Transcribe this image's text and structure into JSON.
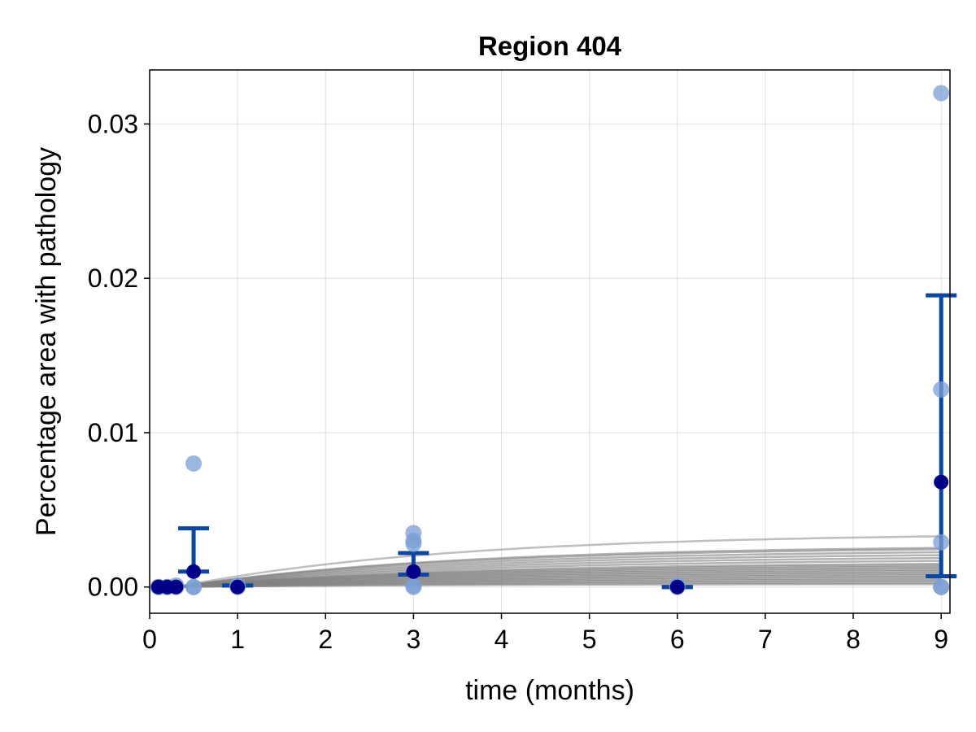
{
  "chart_data": {
    "type": "scatter",
    "title": "Region 404",
    "xlabel": "time (months)",
    "ylabel": "Percentage area with pathology",
    "xlim": [
      0,
      9.1
    ],
    "ylim": [
      -0.0017,
      0.0335
    ],
    "x_ticks": [
      0,
      1,
      2,
      3,
      4,
      5,
      6,
      7,
      8,
      9
    ],
    "x_tick_labels": [
      "0",
      "1",
      "2",
      "3",
      "4",
      "5",
      "6",
      "7",
      "8",
      "9"
    ],
    "y_ticks": [
      0.0,
      0.01,
      0.02,
      0.03
    ],
    "y_tick_labels": [
      "0.00",
      "0.01",
      "0.02",
      "0.03"
    ],
    "grid": true,
    "colors": {
      "observations": "#7a9fd6",
      "mean": "#00008b",
      "error_bar": "#0a47a5",
      "model_curves": "#808080"
    },
    "observations": [
      {
        "x": 0.1,
        "y": 0.0
      },
      {
        "x": 0.1,
        "y": 0.0
      },
      {
        "x": 0.2,
        "y": 0.0
      },
      {
        "x": 0.2,
        "y": 0.0
      },
      {
        "x": 0.3,
        "y": 0.0001
      },
      {
        "x": 0.3,
        "y": 0.0
      },
      {
        "x": 0.5,
        "y": 0.008
      },
      {
        "x": 0.5,
        "y": 0.0
      },
      {
        "x": 0.5,
        "y": 0.0
      },
      {
        "x": 1.0,
        "y": 0.0001
      },
      {
        "x": 1.0,
        "y": 0.0
      },
      {
        "x": 3.0,
        "y": 0.0035
      },
      {
        "x": 3.0,
        "y": 0.003
      },
      {
        "x": 3.0,
        "y": 0.0028
      },
      {
        "x": 3.0,
        "y": 0.0001
      },
      {
        "x": 3.0,
        "y": 0.0
      },
      {
        "x": 6.0,
        "y": 0.0
      },
      {
        "x": 6.0,
        "y": 0.0001
      },
      {
        "x": 9.0,
        "y": 0.032
      },
      {
        "x": 9.0,
        "y": 0.0128
      },
      {
        "x": 9.0,
        "y": 0.0029
      },
      {
        "x": 9.0,
        "y": 0.0
      },
      {
        "x": 9.0,
        "y": 0.0
      }
    ],
    "means": [
      {
        "x": 0.1,
        "y": 0.0
      },
      {
        "x": 0.2,
        "y": 0.0
      },
      {
        "x": 0.3,
        "y": 0.0
      },
      {
        "x": 0.5,
        "y": 0.001
      },
      {
        "x": 1.0,
        "y": 0.0
      },
      {
        "x": 3.0,
        "y": 0.001
      },
      {
        "x": 6.0,
        "y": 0.0
      },
      {
        "x": 9.0,
        "y": 0.0068
      }
    ],
    "error_bars": [
      {
        "x": 0.5,
        "low": 0.001,
        "high": 0.0038
      },
      {
        "x": 1.0,
        "low": 0.0001,
        "high": 0.0001
      },
      {
        "x": 3.0,
        "low": 0.0008,
        "high": 0.0022
      },
      {
        "x": 6.0,
        "low": 0.0,
        "high": 0.0
      },
      {
        "x": 9.0,
        "low": 0.0007,
        "high": 0.0189
      }
    ],
    "model_curves": {
      "x_start": 0.3,
      "x_end": 9.0,
      "rate": 0.32,
      "plateaus": [
        0.0035,
        0.0027,
        0.0026,
        0.0024,
        0.0022,
        0.002,
        0.0018,
        0.0016,
        0.0015,
        0.0014,
        0.0013,
        0.0012,
        0.0011,
        0.001,
        0.0009,
        0.0008,
        0.0007,
        0.0006,
        0.0005,
        0.0004,
        0.0003,
        0.0002
      ]
    }
  }
}
